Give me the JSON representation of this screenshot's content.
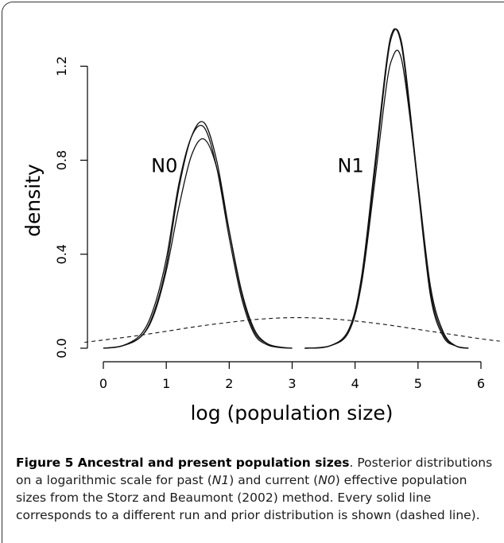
{
  "chart_data": {
    "type": "line",
    "title": "",
    "xlabel": "log (population size)",
    "ylabel": "density",
    "xlim": [
      0,
      6
    ],
    "ylim": [
      0,
      1.36
    ],
    "x_ticks": [
      "0",
      "1",
      "2",
      "3",
      "4",
      "5",
      "6"
    ],
    "y_ticks": [
      "0.0",
      "0.4",
      "0.8",
      "1.2"
    ],
    "grid": false,
    "legend": "none",
    "annotations": [
      {
        "text": "N0",
        "x": 0.97,
        "y": 0.75
      },
      {
        "text": "N1",
        "x": 3.93,
        "y": 0.75
      }
    ],
    "series": [
      {
        "group": "N0",
        "style": "solid",
        "x": [
          0.0,
          0.3,
          0.6,
          0.8,
          1.0,
          1.2,
          1.4,
          1.6,
          1.8,
          2.0,
          2.2,
          2.4,
          2.6,
          2.8,
          3.0
        ],
        "y": [
          0.0,
          0.01,
          0.05,
          0.15,
          0.35,
          0.68,
          0.9,
          0.96,
          0.8,
          0.5,
          0.23,
          0.07,
          0.02,
          0.005,
          0.0
        ]
      },
      {
        "group": "N0",
        "style": "solid",
        "x": [
          0.0,
          0.3,
          0.6,
          0.8,
          1.0,
          1.2,
          1.4,
          1.6,
          1.8,
          2.0,
          2.2,
          2.4,
          2.6,
          2.8,
          3.0
        ],
        "y": [
          0.0,
          0.01,
          0.06,
          0.17,
          0.38,
          0.7,
          0.9,
          0.94,
          0.77,
          0.47,
          0.21,
          0.06,
          0.015,
          0.003,
          0.0
        ]
      },
      {
        "group": "N0",
        "style": "solid",
        "x": [
          0.0,
          0.3,
          0.6,
          0.8,
          1.0,
          1.2,
          1.4,
          1.6,
          1.8,
          2.0,
          2.2,
          2.4,
          2.6,
          2.8,
          3.0
        ],
        "y": [
          0.0,
          0.01,
          0.05,
          0.14,
          0.33,
          0.6,
          0.82,
          0.89,
          0.77,
          0.5,
          0.24,
          0.08,
          0.02,
          0.005,
          0.0
        ]
      },
      {
        "group": "N1",
        "style": "solid",
        "x": [
          3.2,
          3.6,
          3.9,
          4.1,
          4.3,
          4.5,
          4.6,
          4.7,
          4.8,
          5.0,
          5.2,
          5.4,
          5.6,
          5.8
        ],
        "y": [
          0.0,
          0.01,
          0.08,
          0.3,
          0.75,
          1.22,
          1.35,
          1.33,
          1.17,
          0.68,
          0.22,
          0.05,
          0.01,
          0.0
        ]
      },
      {
        "group": "N1",
        "style": "solid",
        "x": [
          3.2,
          3.6,
          3.9,
          4.1,
          4.3,
          4.5,
          4.6,
          4.7,
          4.8,
          5.0,
          5.2,
          5.4,
          5.6,
          5.8
        ],
        "y": [
          0.0,
          0.01,
          0.07,
          0.28,
          0.72,
          1.2,
          1.34,
          1.34,
          1.19,
          0.7,
          0.24,
          0.06,
          0.01,
          0.0
        ]
      },
      {
        "group": "N1",
        "style": "solid",
        "x": [
          3.2,
          3.6,
          3.9,
          4.1,
          4.3,
          4.5,
          4.6,
          4.7,
          4.8,
          5.0,
          5.2,
          5.4,
          5.6,
          5.8
        ],
        "y": [
          0.0,
          0.01,
          0.07,
          0.27,
          0.68,
          1.12,
          1.24,
          1.26,
          1.13,
          0.7,
          0.26,
          0.07,
          0.01,
          0.0
        ]
      },
      {
        "group": "prior",
        "style": "dashed",
        "x": [
          -0.3,
          0.0,
          0.5,
          1.0,
          1.5,
          2.0,
          2.5,
          3.0,
          3.5,
          4.0,
          4.5,
          5.0,
          5.5,
          6.0,
          6.3
        ],
        "y": [
          0.025,
          0.035,
          0.052,
          0.072,
          0.093,
          0.11,
          0.124,
          0.13,
          0.127,
          0.116,
          0.1,
          0.08,
          0.06,
          0.04,
          0.03
        ]
      }
    ]
  },
  "caption": {
    "lead": "Figure 5 Ancestral and present population sizes",
    "text_1": ". Posterior distributions on a logarithmic scale for past (",
    "italic_1": "N1",
    "text_2": ") and current (",
    "italic_2": "N0",
    "text_3": ") effective population sizes from the Storz and Beaumont (2002) method. Every solid line corresponds to a different run and prior distribution is shown (dashed line)."
  }
}
